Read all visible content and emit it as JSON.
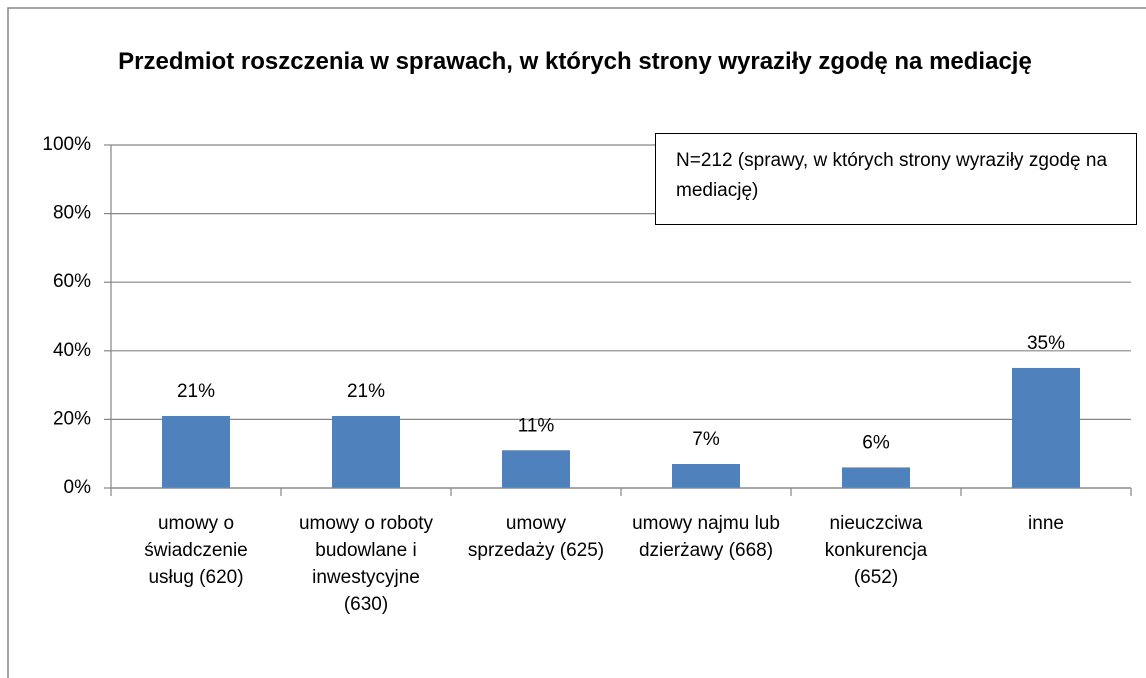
{
  "chart_data": {
    "type": "bar",
    "title": "Przedmiot roszczenia w sprawach, w których strony wyraziły zgodę na mediację",
    "annotation": "N=212  (sprawy, w których strony wyraziły zgodę na mediację)",
    "categories": [
      "umowy o świadczenie usług (620)",
      "umowy o roboty budowlane i inwestycyjne (630)",
      "umowy sprzedaży (625)",
      "umowy najmu lub dzierżawy (668)",
      "nieuczciwa konkurencja (652)",
      "inne"
    ],
    "values": [
      21,
      21,
      11,
      7,
      6,
      35
    ],
    "value_labels": [
      "21%",
      "21%",
      "11%",
      "7%",
      "6%",
      "35%"
    ],
    "color": "#4f81bd",
    "ylim": [
      0,
      100
    ],
    "yticks": [
      {
        "value": 0,
        "label": "0%"
      },
      {
        "value": 20,
        "label": "20%"
      },
      {
        "value": 40,
        "label": "40%"
      },
      {
        "value": 60,
        "label": "60%"
      },
      {
        "value": 80,
        "label": "80%"
      },
      {
        "value": 100,
        "label": "100%"
      }
    ],
    "grid": true
  }
}
